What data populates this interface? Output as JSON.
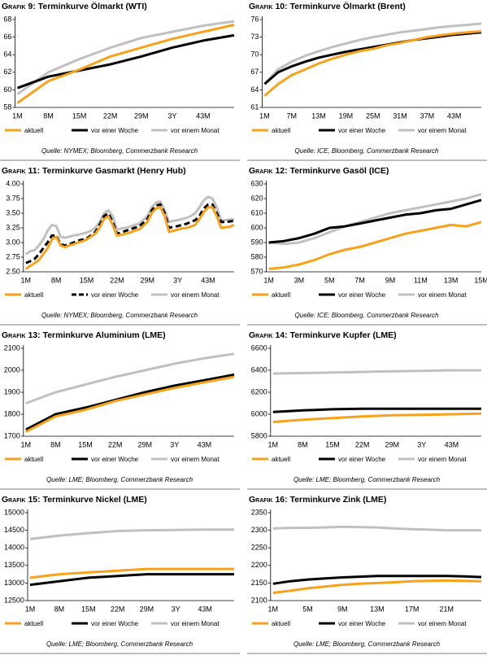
{
  "chart_data": [
    {
      "type": "line",
      "figure": "Grafik 9:",
      "title": "Terminkurve Ölmarkt (WTI)",
      "source": "Quelle: NYMEX; Bloomberg, Commerzbank Research",
      "categories": [
        "1M",
        "8M",
        "15M",
        "22M",
        "29M",
        "3Y",
        "43M",
        null
      ],
      "series": [
        {
          "name": "aktuell",
          "color": "#f7a21b",
          "values": [
            58.5,
            61.0,
            62.3,
            63.8,
            64.8,
            65.8,
            66.6,
            67.4
          ]
        },
        {
          "name": "vor einer Woche",
          "color": "#000000",
          "values": [
            60.2,
            61.5,
            62.2,
            62.9,
            63.8,
            64.8,
            65.6,
            66.2
          ]
        },
        {
          "name": "vor einem Monat",
          "color": "#c0c0c0",
          "values": [
            59.5,
            62.0,
            63.5,
            64.8,
            65.9,
            66.6,
            67.3,
            67.8
          ]
        }
      ],
      "ylim": [
        58,
        68
      ],
      "yticks": [
        58,
        60,
        62,
        64,
        66,
        68
      ]
    },
    {
      "type": "line",
      "figure": "Grafik 10:",
      "title": "Terminkurve Ölmarkt (Brent)",
      "source": "Quelle: ICE, Bloomberg, Commerzbank Research",
      "categories": [
        "1M",
        null,
        "7M",
        null,
        "13M",
        null,
        "19M",
        null,
        "25M",
        null,
        "31M",
        null,
        "37M",
        null,
        "43M",
        null,
        null
      ],
      "series": [
        {
          "name": "aktuell",
          "color": "#f7a21b",
          "values": [
            63.0,
            65.0,
            66.5,
            67.5,
            68.5,
            69.3,
            70.0,
            70.6,
            71.0,
            71.6,
            72.0,
            72.5,
            73.0,
            73.3,
            73.6,
            73.8,
            74.0
          ]
        },
        {
          "name": "vor einer Woche",
          "color": "#000000",
          "values": [
            65.0,
            67.0,
            68.0,
            68.8,
            69.5,
            70.0,
            70.5,
            70.9,
            71.3,
            71.7,
            72.1,
            72.5,
            72.8,
            73.1,
            73.4,
            73.6,
            73.8
          ]
        },
        {
          "name": "vor einem Monat",
          "color": "#c0c0c0",
          "values": [
            65.0,
            67.5,
            68.8,
            69.8,
            70.6,
            71.3,
            71.9,
            72.5,
            73.0,
            73.4,
            73.8,
            74.1,
            74.4,
            74.7,
            74.9,
            75.1,
            75.3
          ]
        }
      ],
      "ylim": [
        61,
        76
      ],
      "yticks": [
        61,
        64,
        67,
        70,
        73,
        76
      ]
    },
    {
      "type": "line",
      "figure": "Grafik 11:",
      "title": "Terminkurve Gasmarkt (Henry Hub)",
      "source": "Quelle: NYMEX; Bloomberg, Commerzbank Research",
      "categories": [
        "1M",
        null,
        null,
        null,
        null,
        null,
        null,
        "8M",
        null,
        null,
        null,
        null,
        null,
        null,
        "15M",
        null,
        null,
        null,
        null,
        null,
        null,
        "22M",
        null,
        null,
        null,
        null,
        null,
        null,
        "29M",
        null,
        null,
        null,
        null,
        null,
        null,
        "3Y",
        null,
        null,
        null,
        null,
        null,
        null,
        "43M",
        null,
        null,
        null,
        null,
        null,
        null
      ],
      "series": [
        {
          "name": "aktuell",
          "color": "#f7a21b",
          "values": [
            2.55,
            2.6,
            2.65,
            2.7,
            2.8,
            2.9,
            3.05,
            3.1,
            2.95,
            2.92,
            2.95,
            2.97,
            3.0,
            3.02,
            3.05,
            3.1,
            3.15,
            3.25,
            3.4,
            3.45,
            3.3,
            3.12,
            3.13,
            3.15,
            3.17,
            3.2,
            3.22,
            3.28,
            3.35,
            3.5,
            3.58,
            3.6,
            3.45,
            3.18,
            3.2,
            3.22,
            3.24,
            3.25,
            3.27,
            3.3,
            3.4,
            3.52,
            3.6,
            3.6,
            3.45,
            3.25,
            3.26,
            3.27,
            3.3
          ]
        },
        {
          "name": "vor einer Woche",
          "color": "#000000",
          "dash": true,
          "values": [
            2.65,
            2.68,
            2.72,
            2.8,
            2.9,
            3.0,
            3.12,
            3.12,
            2.97,
            2.95,
            2.97,
            3.0,
            3.03,
            3.05,
            3.07,
            3.12,
            3.18,
            3.3,
            3.45,
            3.5,
            3.35,
            3.15,
            3.17,
            3.2,
            3.22,
            3.25,
            3.27,
            3.33,
            3.4,
            3.55,
            3.63,
            3.65,
            3.5,
            3.25,
            3.27,
            3.28,
            3.3,
            3.32,
            3.35,
            3.38,
            3.45,
            3.58,
            3.65,
            3.65,
            3.5,
            3.35,
            3.35,
            3.36,
            3.37
          ]
        },
        {
          "name": "vor einem Monat",
          "color": "#c0c0c0",
          "values": [
            2.8,
            2.85,
            2.87,
            2.95,
            3.05,
            3.2,
            3.3,
            3.28,
            3.1,
            3.08,
            3.1,
            3.12,
            3.13,
            3.15,
            3.17,
            3.2,
            3.25,
            3.35,
            3.5,
            3.55,
            3.45,
            3.22,
            3.24,
            3.25,
            3.27,
            3.3,
            3.32,
            3.38,
            3.45,
            3.6,
            3.68,
            3.7,
            3.55,
            3.35,
            3.37,
            3.38,
            3.4,
            3.42,
            3.45,
            3.5,
            3.6,
            3.72,
            3.78,
            3.75,
            3.6,
            3.38,
            3.38,
            3.39,
            3.4
          ]
        }
      ],
      "ylim": [
        2.5,
        4.0
      ],
      "yticks": [
        {
          "value": 2.5,
          "label": "2.50"
        },
        {
          "value": 2.75,
          "label": "2.75"
        },
        {
          "value": 3,
          "label": "3.00"
        },
        {
          "value": 3.25,
          "label": "3.25"
        },
        {
          "value": 3.5,
          "label": "3.50"
        },
        {
          "value": 3.75,
          "label": "3.75"
        },
        {
          "value": 4,
          "label": "4.00"
        }
      ]
    },
    {
      "type": "line",
      "figure": "Grafik 12:",
      "title": "Terminkurve Gasöl (ICE)",
      "source": "Quelle: ICE; Bloomberg, Commerzbank Research",
      "categories": [
        "1M",
        null,
        "3M",
        null,
        "5M",
        null,
        "7M",
        null,
        "9M",
        null,
        "11M",
        null,
        "13M",
        null,
        "15M"
      ],
      "series": [
        {
          "name": "aktuell",
          "color": "#f7a21b",
          "values": [
            572,
            573,
            575,
            578,
            582,
            585,
            587,
            590,
            593,
            596,
            598,
            600,
            602,
            601,
            604
          ]
        },
        {
          "name": "vor einer Woche",
          "color": "#000000",
          "values": [
            590,
            591,
            593,
            596,
            600,
            601,
            603,
            605,
            607,
            609,
            610,
            612,
            613,
            616,
            619
          ]
        },
        {
          "name": "vor einem Monat",
          "color": "#c0c0c0",
          "values": [
            590,
            589,
            590,
            593,
            597,
            601,
            604,
            607,
            610,
            612,
            614,
            616,
            618,
            620,
            623
          ]
        }
      ],
      "ylim": [
        570,
        630
      ],
      "yticks": [
        570,
        580,
        590,
        600,
        610,
        620,
        630
      ]
    },
    {
      "type": "line",
      "figure": "Grafik 13:",
      "title": "Terminkurve Aluminium (LME)",
      "source": "Quelle: LME; Bloomberg, Commerzbank Research",
      "categories": [
        "1M",
        "8M",
        "15M",
        "22M",
        "29M",
        "3Y",
        "43M",
        null
      ],
      "series": [
        {
          "name": "aktuell",
          "color": "#f7a21b",
          "values": [
            1720,
            1790,
            1820,
            1860,
            1890,
            1920,
            1945,
            1970
          ]
        },
        {
          "name": "vor einer Woche",
          "color": "#000000",
          "values": [
            1730,
            1800,
            1830,
            1865,
            1900,
            1930,
            1955,
            1980
          ]
        },
        {
          "name": "vor einem Monat",
          "color": "#c0c0c0",
          "values": [
            1850,
            1900,
            1935,
            1970,
            2000,
            2030,
            2055,
            2075
          ]
        }
      ],
      "ylim": [
        1700,
        2100
      ],
      "yticks": [
        1700,
        1800,
        1900,
        2000,
        2100
      ]
    },
    {
      "type": "line",
      "figure": "Grafik 14:",
      "title": "Terminkurve Kupfer (LME)",
      "source": "Quelle: LME; Bloomberg, Commerzbank Research",
      "categories": [
        "1M",
        "8M",
        "15M",
        "22M",
        "29M",
        "3Y",
        "43M",
        null
      ],
      "series": [
        {
          "name": "aktuell",
          "color": "#f7a21b",
          "values": [
            5930,
            5950,
            5965,
            5980,
            5990,
            5995,
            6000,
            6005
          ]
        },
        {
          "name": "vor einer Woche",
          "color": "#000000",
          "values": [
            6020,
            6035,
            6045,
            6050,
            6050,
            6050,
            6050,
            6050
          ]
        },
        {
          "name": "vor einem Monat",
          "color": "#c0c0c0",
          "values": [
            6370,
            6375,
            6380,
            6385,
            6390,
            6395,
            6400,
            6400
          ]
        }
      ],
      "ylim": [
        5800,
        6600
      ],
      "yticks": [
        5800,
        6000,
        6200,
        6400,
        6600
      ]
    },
    {
      "type": "line",
      "figure": "Grafik 15:",
      "title": "Terminkurve Nickel (LME)",
      "source": "Quelle: LME; Bloomberg, Commerzbank Research",
      "categories": [
        "1M",
        "8M",
        "15M",
        "22M",
        "29M",
        "3Y",
        "43M",
        null
      ],
      "series": [
        {
          "name": "aktuell",
          "color": "#f7a21b",
          "values": [
            13150,
            13250,
            13300,
            13350,
            13400,
            13400,
            13400,
            13400
          ]
        },
        {
          "name": "vor einer Woche",
          "color": "#000000",
          "values": [
            12950,
            13050,
            13150,
            13200,
            13250,
            13250,
            13250,
            13250
          ]
        },
        {
          "name": "vor einem Monat",
          "color": "#c0c0c0",
          "values": [
            14250,
            14350,
            14420,
            14480,
            14500,
            14510,
            14520,
            14520
          ]
        }
      ],
      "ylim": [
        12500,
        15000
      ],
      "yticks": [
        12500,
        13000,
        13500,
        14000,
        14500,
        15000
      ]
    },
    {
      "type": "line",
      "figure": "Grafik 16:",
      "title": "Terminkurve Zink (LME)",
      "source": "Quelle: LME; Bloomberg, Commerzbank Research",
      "categories": [
        "1M",
        null,
        "5M",
        null,
        "9M",
        null,
        "13M",
        null,
        "17M",
        null,
        "21M",
        null,
        null
      ],
      "series": [
        {
          "name": "aktuell",
          "color": "#f7a21b",
          "values": [
            2122,
            2128,
            2135,
            2140,
            2145,
            2148,
            2150,
            2152,
            2155,
            2156,
            2157,
            2156,
            2155
          ]
        },
        {
          "name": "vor einer Woche",
          "color": "#000000",
          "values": [
            2148,
            2155,
            2160,
            2163,
            2166,
            2168,
            2170,
            2170,
            2170,
            2170,
            2170,
            2169,
            2167
          ]
        },
        {
          "name": "vor einem Monat",
          "color": "#c0c0c0",
          "values": [
            2305,
            2307,
            2307,
            2308,
            2310,
            2309,
            2308,
            2305,
            2303,
            2302,
            2300,
            2300,
            2300
          ]
        }
      ],
      "ylim": [
        2100,
        2350
      ],
      "yticks": [
        2100,
        2150,
        2200,
        2250,
        2300,
        2350
      ]
    }
  ]
}
